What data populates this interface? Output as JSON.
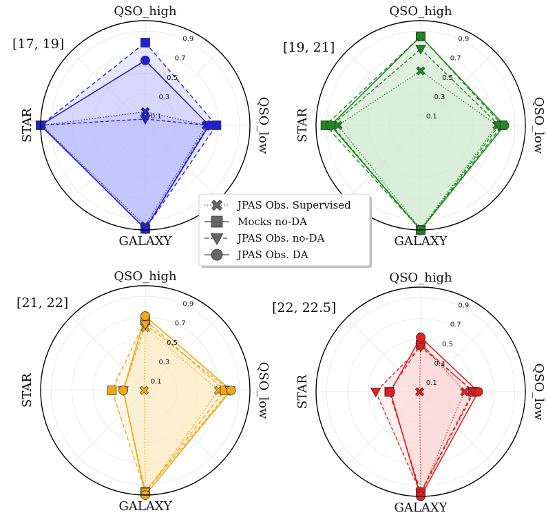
{
  "chart_data": [
    {
      "type": "radar",
      "title": "[17, 19]",
      "axes": [
        "QSO_high",
        "QSO_low",
        "GALAXY",
        "STAR"
      ],
      "rticks": [
        0.1,
        0.3,
        0.5,
        0.7,
        0.9
      ],
      "rlim": [
        0,
        1
      ],
      "color": "#1f1fdc",
      "fill": "#b8b8ff",
      "series": [
        {
          "name": "JPAS Obs. Supervised",
          "marker": "x",
          "values": [
            0.13,
            0.58,
            0.96,
            0.99
          ]
        },
        {
          "name": "Mocks no-DA",
          "marker": "square",
          "values": [
            0.79,
            0.68,
            0.99,
            1.0
          ]
        },
        {
          "name": "JPAS Obs. no-DA",
          "marker": "triangle",
          "values": [
            0.06,
            0.6,
            0.99,
            1.0
          ]
        },
        {
          "name": "JPAS Obs. DA",
          "marker": "circle",
          "values": [
            0.62,
            0.61,
            0.99,
            1.0
          ]
        }
      ]
    },
    {
      "type": "radar",
      "title": "[19, 21]",
      "axes": [
        "QSO_high",
        "QSO_low",
        "GALAXY",
        "STAR"
      ],
      "rticks": [
        0.1,
        0.3,
        0.5,
        0.7,
        0.9
      ],
      "rlim": [
        0,
        1
      ],
      "color": "#1f8a1f",
      "fill": "#cfe8cf",
      "series": [
        {
          "name": "JPAS Obs. Supervised",
          "marker": "x",
          "values": [
            0.52,
            0.73,
            0.99,
            0.79
          ]
        },
        {
          "name": "Mocks no-DA",
          "marker": "square",
          "values": [
            0.85,
            0.78,
            1.0,
            0.91
          ]
        },
        {
          "name": "JPAS Obs. no-DA",
          "marker": "triangle",
          "values": [
            0.73,
            0.75,
            1.0,
            0.85
          ]
        },
        {
          "name": "JPAS Obs. DA",
          "marker": "circle",
          "values": [
            0.85,
            0.8,
            1.0,
            0.86
          ]
        }
      ]
    },
    {
      "type": "radar",
      "title": "[21, 22]",
      "axes": [
        "QSO_high",
        "QSO_low",
        "GALAXY",
        "STAR"
      ],
      "rticks": [
        0.1,
        0.3,
        0.5,
        0.7,
        0.9
      ],
      "rlim": [
        0,
        1
      ],
      "color": "#f0a814",
      "fill": "#fde8c2",
      "series": [
        {
          "name": "JPAS Obs. Supervised",
          "marker": "x",
          "values": [
            0.6,
            0.7,
            0.98,
            0.01
          ]
        },
        {
          "name": "Mocks no-DA",
          "marker": "square",
          "values": [
            0.67,
            0.76,
            0.97,
            0.32
          ]
        },
        {
          "name": "JPAS Obs. no-DA",
          "marker": "triangle",
          "values": [
            0.63,
            0.81,
            0.97,
            0.21
          ]
        },
        {
          "name": "JPAS Obs. DA",
          "marker": "circle",
          "values": [
            0.71,
            0.82,
            1.0,
            0.21
          ]
        }
      ]
    },
    {
      "type": "radar",
      "title": "[22, 22.5]",
      "axes": [
        "QSO_high",
        "QSO_low",
        "GALAXY",
        "STAR"
      ],
      "rticks": [
        0.1,
        0.3,
        0.5,
        0.7,
        0.9
      ],
      "rlim": [
        0,
        1
      ],
      "color": "#e81e1e",
      "fill": "#fbd4d4",
      "series": [
        {
          "name": "JPAS Obs. Supervised",
          "marker": "x",
          "values": [
            0.47,
            0.42,
            0.98,
            0.01
          ]
        },
        {
          "name": "Mocks no-DA",
          "marker": "square",
          "values": [
            0.45,
            0.5,
            0.96,
            0.3
          ]
        },
        {
          "name": "JPAS Obs. no-DA",
          "marker": "triangle",
          "values": [
            0.43,
            0.51,
            0.97,
            0.43
          ]
        },
        {
          "name": "JPAS Obs. DA",
          "marker": "circle",
          "values": [
            0.52,
            0.55,
            1.0,
            0.29
          ]
        }
      ]
    }
  ],
  "legend": [
    {
      "label": "JPAS Obs. Supervised",
      "marker": "x",
      "dash": "dotted"
    },
    {
      "label": "Mocks no-DA",
      "marker": "square",
      "dash": "solid"
    },
    {
      "label": "JPAS Obs. no-DA",
      "marker": "triangle",
      "dash": "dashed"
    },
    {
      "label": "JPAS Obs. DA",
      "marker": "circle",
      "dash": "long-dash"
    }
  ]
}
